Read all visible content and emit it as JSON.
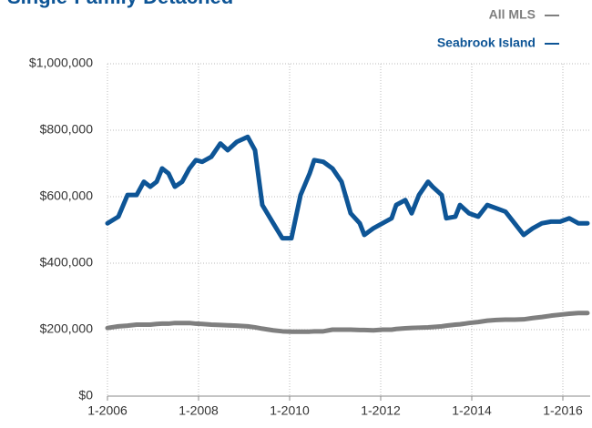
{
  "chart_data": {
    "type": "line",
    "title": "Single-Family Detached",
    "x": [
      2006,
      2006.24,
      2006.44,
      2006.64,
      2006.8,
      2006.94,
      2007.08,
      2007.2,
      2007.34,
      2007.48,
      2007.64,
      2007.8,
      2007.94,
      2008.08,
      2008.28,
      2008.48,
      2008.64,
      2008.84,
      2009.08,
      2009.24,
      2009.4,
      2009.64,
      2009.84,
      2010.04,
      2010.24,
      2010.44,
      2010.54,
      2010.74,
      2010.94,
      2011.14,
      2011.34,
      2011.54,
      2011.64,
      2011.84,
      2012.04,
      2012.24,
      2012.34,
      2012.54,
      2012.68,
      2012.84,
      2013.04,
      2013.14,
      2013.34,
      2013.44,
      2013.64,
      2013.74,
      2013.94,
      2014.14,
      2014.34,
      2014.54,
      2014.74,
      2014.94,
      2015.14,
      2015.34,
      2015.54,
      2015.74,
      2015.94,
      2016.14,
      2016.34,
      2016.54
    ],
    "series": [
      {
        "name": "All MLS",
        "color": "#7f7f7f",
        "values": [
          205000,
          210000,
          212000,
          215000,
          215000,
          215000,
          217000,
          218000,
          218000,
          220000,
          220000,
          220000,
          218000,
          217000,
          215000,
          214000,
          213000,
          212000,
          210000,
          207000,
          203000,
          198000,
          195000,
          194000,
          194000,
          194000,
          195000,
          195000,
          200000,
          200000,
          200000,
          199000,
          199000,
          198000,
          200000,
          200000,
          202000,
          204000,
          205000,
          206000,
          207000,
          208000,
          210000,
          212000,
          215000,
          216000,
          220000,
          223000,
          227000,
          229000,
          230000,
          230000,
          231000,
          235000,
          238000,
          242000,
          245000,
          248000,
          250000,
          250000
        ]
      },
      {
        "name": "Seabrook Island",
        "color": "#0e5596",
        "values": [
          520000,
          540000,
          605000,
          605000,
          645000,
          630000,
          645000,
          685000,
          670000,
          630000,
          645000,
          685000,
          710000,
          705000,
          720000,
          760000,
          740000,
          765000,
          780000,
          740000,
          575000,
          520000,
          475000,
          475000,
          605000,
          670000,
          710000,
          705000,
          685000,
          645000,
          550000,
          520000,
          485000,
          505000,
          520000,
          535000,
          575000,
          590000,
          550000,
          605000,
          645000,
          630000,
          605000,
          535000,
          540000,
          575000,
          550000,
          540000,
          575000,
          565000,
          555000,
          520000,
          485000,
          505000,
          520000,
          525000,
          525000,
          535000,
          520000,
          520000
        ]
      }
    ],
    "xlim": [
      2006,
      2016.6
    ],
    "xticks": [
      {
        "value": 2006,
        "label": "1-2006"
      },
      {
        "value": 2008,
        "label": "1-2008"
      },
      {
        "value": 2010,
        "label": "1-2010"
      },
      {
        "value": 2012,
        "label": "1-2012"
      },
      {
        "value": 2014,
        "label": "1-2014"
      },
      {
        "value": 2016,
        "label": "1-2016"
      }
    ],
    "ylim": [
      0,
      1000000
    ],
    "yticks": [
      {
        "value": 0,
        "label": "$0"
      },
      {
        "value": 200000,
        "label": "$200,000"
      },
      {
        "value": 400000,
        "label": "$400,000"
      },
      {
        "value": 600000,
        "label": "$600,000"
      },
      {
        "value": 800000,
        "label": "$800,000"
      },
      {
        "value": 1000000,
        "label": "$1,000,000"
      }
    ],
    "grid": true,
    "legend": "top-right"
  }
}
